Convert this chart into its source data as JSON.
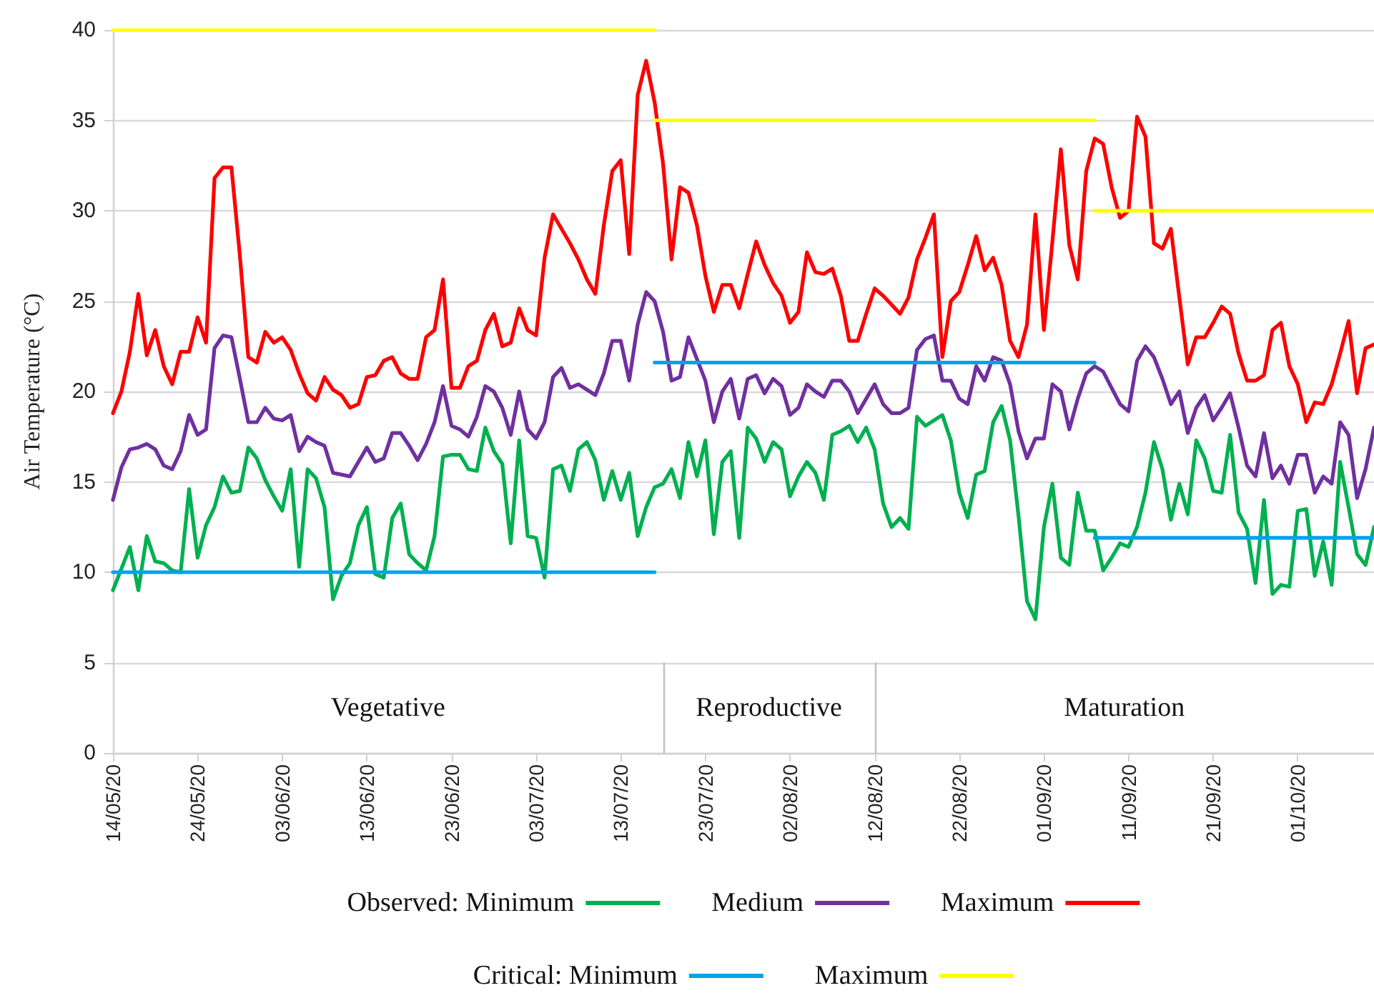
{
  "chart_data": {
    "type": "line",
    "ylabel": "Air Temperature (°C)",
    "x": [
      "--05-14",
      "--05-15",
      "--05-16",
      "--05-17",
      "--05-18",
      "--05-19",
      "--05-20",
      "--05-21",
      "--05-22",
      "--05-23",
      "--05-24",
      "--05-25",
      "--05-26",
      "--05-27",
      "--05-28",
      "--05-29",
      "--05-30",
      "--05-31",
      "--06-01",
      "--06-02",
      "--06-03",
      "--06-04",
      "--06-05",
      "--06-06",
      "--06-07",
      "--06-08",
      "--06-09",
      "--06-10",
      "--06-11",
      "--06-12",
      "--06-13",
      "--06-14",
      "--06-15",
      "--06-16",
      "--06-17",
      "--06-18",
      "--06-19",
      "--06-20",
      "--06-21",
      "--06-22",
      "--06-23",
      "--06-24",
      "--06-25",
      "--06-26",
      "--06-27",
      "--06-28",
      "--06-29",
      "--06-30",
      "--07-01",
      "--07-02",
      "--07-03",
      "--07-04",
      "--07-05",
      "--07-06",
      "--07-07",
      "--07-08",
      "--07-09",
      "--07-10",
      "--07-11",
      "--07-12",
      "--07-13",
      "--07-14",
      "--07-15",
      "--07-16",
      "--07-17",
      "--07-18",
      "--07-19",
      "--07-20",
      "--07-21",
      "--07-22",
      "--07-23",
      "--07-24",
      "--07-25",
      "--07-26",
      "--07-27",
      "--07-28",
      "--07-29",
      "--07-30",
      "--07-31",
      "--08-01",
      "--08-02",
      "--08-03",
      "--08-04",
      "--08-05",
      "--08-06",
      "--08-07",
      "--08-08",
      "--08-09",
      "--08-10",
      "--08-11",
      "--08-12",
      "--08-13",
      "--08-14",
      "--08-15",
      "--08-16",
      "--08-17",
      "--08-18",
      "--08-19",
      "--08-20",
      "--08-21",
      "--08-22",
      "--08-23",
      "--08-24",
      "--08-25",
      "--08-26",
      "--08-27",
      "--08-28",
      "--08-29",
      "--08-30",
      "--08-31",
      "--09-01",
      "--09-02",
      "--09-03",
      "--09-04",
      "--09-05",
      "--09-06",
      "--09-07",
      "--09-08",
      "--09-09",
      "--09-10",
      "--09-11",
      "--09-12",
      "--09-13",
      "--09-14",
      "--09-15",
      "--09-16",
      "--09-17",
      "--09-18",
      "--09-19",
      "--09-20",
      "--09-21",
      "--09-22",
      "--09-23",
      "--09-24",
      "--09-25",
      "--09-26",
      "--09-27",
      "--09-28",
      "--09-29",
      "--09-30",
      "--10-01",
      "--10-02",
      "--10-03",
      "--10-04",
      "--10-05",
      "--10-06",
      "--10-07",
      "--10-08",
      "--10-09",
      "--10-10"
    ],
    "series": [
      {
        "name": "Observed: Minimum",
        "color": "#00b050",
        "values": [
          9.0,
          10.2,
          11.4,
          9.0,
          12.0,
          10.6,
          10.5,
          10.1,
          10.0,
          14.6,
          10.8,
          12.6,
          13.6,
          15.3,
          14.4,
          14.5,
          16.9,
          16.3,
          15.1,
          14.2,
          13.4,
          15.7,
          10.3,
          15.7,
          15.2,
          13.6,
          8.5,
          9.8,
          10.5,
          12.6,
          13.6,
          9.9,
          9.7,
          13.0,
          13.8,
          11.0,
          10.5,
          10.1,
          12.0,
          16.4,
          16.5,
          16.5,
          15.7,
          15.6,
          18.0,
          16.7,
          16.0,
          11.6,
          17.3,
          12.0,
          11.9,
          9.7,
          15.7,
          15.9,
          14.5,
          16.8,
          17.2,
          16.2,
          14.0,
          15.6,
          14.0,
          15.5,
          12.0,
          13.6,
          14.7,
          14.9,
          15.7,
          14.1,
          17.2,
          15.3,
          17.3,
          12.1,
          16.1,
          16.7,
          11.9,
          18.0,
          17.4,
          16.1,
          17.2,
          16.8,
          14.2,
          15.3,
          16.1,
          15.5,
          14.0,
          17.6,
          17.8,
          18.1,
          17.2,
          18.0,
          16.8,
          13.8,
          12.5,
          13.0,
          12.4,
          18.6,
          18.1,
          18.4,
          18.7,
          17.3,
          14.4,
          13.0,
          15.4,
          15.6,
          18.3,
          19.2,
          17.3,
          13.1,
          8.4,
          7.4,
          12.5,
          14.9,
          10.8,
          10.4,
          14.4,
          12.3,
          12.3,
          10.1,
          10.8,
          11.6,
          11.4,
          12.5,
          14.4,
          17.2,
          15.7,
          12.9,
          14.9,
          13.2,
          17.3,
          16.3,
          14.5,
          14.4,
          17.6,
          13.3,
          12.4,
          9.4,
          14.0,
          8.8,
          9.3,
          9.2,
          13.4,
          13.5,
          9.8,
          11.7,
          9.3,
          16.1,
          13.6,
          11.0,
          10.4,
          12.5
        ]
      },
      {
        "name": "Medium",
        "color": "#7030a0",
        "values": [
          14.0,
          15.8,
          16.8,
          16.9,
          17.1,
          16.8,
          15.9,
          15.7,
          16.7,
          18.7,
          17.6,
          17.9,
          22.4,
          23.1,
          23.0,
          20.7,
          18.3,
          18.3,
          19.1,
          18.5,
          18.4,
          18.7,
          16.7,
          17.5,
          17.2,
          17.0,
          15.5,
          15.4,
          15.3,
          16.1,
          16.9,
          16.1,
          16.3,
          17.7,
          17.7,
          17.0,
          16.2,
          17.1,
          18.3,
          20.3,
          18.1,
          17.9,
          17.5,
          18.6,
          20.3,
          20.0,
          19.1,
          17.6,
          20.0,
          17.9,
          17.4,
          18.3,
          20.8,
          21.3,
          20.2,
          20.4,
          20.1,
          19.8,
          21.0,
          22.8,
          22.8,
          20.6,
          23.7,
          25.5,
          25.0,
          23.3,
          20.6,
          20.8,
          23.0,
          21.8,
          20.6,
          18.3,
          20.0,
          20.7,
          18.5,
          20.7,
          20.9,
          19.9,
          20.7,
          20.3,
          18.7,
          19.1,
          20.4,
          20.0,
          19.7,
          20.6,
          20.6,
          20.0,
          18.8,
          19.6,
          20.4,
          19.3,
          18.8,
          18.8,
          19.1,
          22.3,
          22.9,
          23.1,
          20.6,
          20.6,
          19.6,
          19.3,
          21.4,
          20.6,
          21.9,
          21.7,
          20.4,
          17.8,
          16.3,
          17.4,
          17.4,
          20.4,
          20.0,
          17.9,
          19.6,
          21.0,
          21.4,
          21.1,
          20.2,
          19.3,
          18.9,
          21.7,
          22.5,
          21.9,
          20.7,
          19.3,
          20.0,
          17.7,
          19.1,
          19.8,
          18.4,
          19.1,
          19.9,
          18.0,
          15.9,
          15.3,
          17.7,
          15.2,
          15.9,
          14.9,
          16.5,
          16.5,
          14.4,
          15.3,
          14.9,
          18.3,
          17.6,
          14.1,
          15.7,
          18.0
        ]
      },
      {
        "name": "Maximum",
        "color": "#ff0000",
        "values": [
          18.8,
          20.0,
          22.2,
          25.4,
          22.0,
          23.4,
          21.4,
          20.4,
          22.2,
          22.2,
          24.1,
          22.7,
          31.8,
          32.4,
          32.4,
          27.5,
          21.9,
          21.6,
          23.3,
          22.7,
          23.0,
          22.3,
          21.0,
          19.9,
          19.5,
          20.8,
          20.1,
          19.8,
          19.1,
          19.3,
          20.8,
          20.9,
          21.7,
          21.9,
          21.0,
          20.7,
          20.7,
          23.0,
          23.4,
          26.2,
          20.2,
          20.2,
          21.4,
          21.7,
          23.4,
          24.3,
          22.5,
          22.7,
          24.6,
          23.4,
          23.1,
          27.4,
          29.8,
          29.0,
          28.2,
          27.3,
          26.2,
          25.4,
          29.2,
          32.2,
          32.8,
          27.6,
          36.4,
          38.3,
          36.0,
          32.6,
          27.3,
          31.3,
          31.0,
          29.2,
          26.4,
          24.4,
          25.9,
          25.9,
          24.6,
          26.5,
          28.3,
          27.0,
          26.0,
          25.3,
          23.8,
          24.4,
          27.7,
          26.6,
          26.5,
          26.8,
          25.3,
          22.8,
          22.8,
          24.3,
          25.7,
          25.3,
          24.8,
          24.3,
          25.2,
          27.3,
          28.5,
          29.8,
          21.9,
          25.0,
          25.5,
          27.0,
          28.6,
          26.7,
          27.4,
          25.9,
          22.8,
          21.9,
          23.7,
          29.8,
          23.4,
          28.3,
          33.4,
          28.1,
          26.2,
          32.2,
          34.0,
          33.7,
          31.3,
          29.6,
          30.0,
          35.2,
          34.1,
          28.2,
          27.9,
          29.0,
          25.2,
          21.5,
          23.0,
          23.0,
          23.8,
          24.7,
          24.3,
          22.1,
          20.6,
          20.6,
          20.9,
          23.4,
          23.8,
          21.4,
          20.4,
          18.3,
          19.4,
          19.3,
          20.4,
          22.1,
          23.9,
          19.9,
          22.4,
          22.6
        ]
      },
      {
        "name": "Critical: Minimum",
        "color": "#00a2e8",
        "x": [
          "--05-14",
          "--07-17",
          null,
          "--07-17",
          "--09-07",
          null,
          "--09-07",
          "--10-10"
        ],
        "values": [
          10,
          10,
          null,
          21.6,
          21.6,
          null,
          11.9,
          11.9
        ]
      },
      {
        "name": "Maximum",
        "color": "#ffff00",
        "x": [
          "--05-14",
          "--07-17",
          null,
          "--07-17",
          "--09-07",
          null,
          "--09-07",
          "--10-10"
        ],
        "values": [
          40,
          40,
          null,
          35,
          35,
          null,
          30,
          30
        ]
      }
    ],
    "xlim": [
      "--05-14",
      "--10-10"
    ],
    "xticks": [
      {
        "value": "--05-14",
        "label": "14/05/20"
      },
      {
        "value": "--05-24",
        "label": "24/05/20"
      },
      {
        "value": "--06-03",
        "label": "03/06/20"
      },
      {
        "value": "--06-13",
        "label": "13/06/20"
      },
      {
        "value": "--06-23",
        "label": "23/06/20"
      },
      {
        "value": "--07-03",
        "label": "03/07/20"
      },
      {
        "value": "--07-13",
        "label": "13/07/20"
      },
      {
        "value": "--07-23",
        "label": "23/07/20"
      },
      {
        "value": "--08-02",
        "label": "02/08/20"
      },
      {
        "value": "--08-12",
        "label": "12/08/20"
      },
      {
        "value": "--08-22",
        "label": "22/08/20"
      },
      {
        "value": "--09-01",
        "label": "01/09/20"
      },
      {
        "value": "--09-11",
        "label": "11/09/20"
      },
      {
        "value": "--09-21",
        "label": "21/09/20"
      },
      {
        "value": "--10-01",
        "label": "01/10/20"
      }
    ],
    "ylim": [
      0,
      40
    ],
    "yticks": [
      0,
      5,
      10,
      15,
      20,
      25,
      30,
      35,
      40
    ],
    "ref_lines": [
      {
        "axis": "x",
        "value": "--07-18",
        "color": "#bfbfbf"
      },
      {
        "axis": "x",
        "value": "--08-12",
        "color": "#bfbfbf"
      }
    ],
    "annotations": [
      "Vegetative",
      "Reproductive",
      "Maturation"
    ],
    "grid": "y",
    "legend": "bottom",
    "marker": "none",
    "line_style": "solid"
  }
}
